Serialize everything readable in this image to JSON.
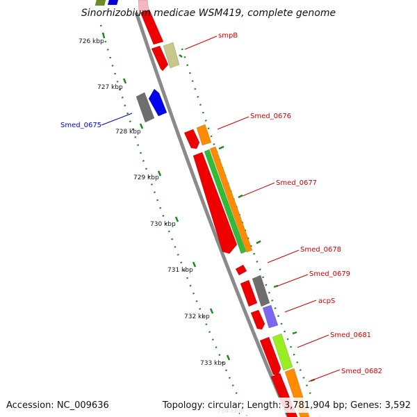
{
  "title": "Sinorhizobium medicae WSM419, complete genome",
  "footer": {
    "accession": "Accession: NC_009636",
    "summary": "Topology: circular; Length: 3,781,904 bp; Genes: 3,592"
  },
  "colors": {
    "backbone": "#8a8a8a",
    "scale_dots": "#1a8a1a",
    "forward_label": "#cc0000",
    "reverse_label": "#0000cc"
  },
  "scale_ticks": [
    {
      "kbp": 726,
      "label": "726 kbp"
    },
    {
      "kbp": 727,
      "label": "727 kbp"
    },
    {
      "kbp": 728,
      "label": "728 kbp"
    },
    {
      "kbp": 729,
      "label": "729 kbp"
    },
    {
      "kbp": 730,
      "label": "730 kbp"
    },
    {
      "kbp": 731,
      "label": "731 kbp"
    },
    {
      "kbp": 732,
      "label": "732 kbp"
    },
    {
      "kbp": 733,
      "label": "733 kbp"
    },
    {
      "kbp": 734,
      "label": "734 kbp"
    }
  ],
  "gene_labels": [
    {
      "name": "smpB",
      "strand": "forward"
    },
    {
      "name": "Smed_0675",
      "strand": "reverse"
    },
    {
      "name": "Smed_0676",
      "strand": "forward"
    },
    {
      "name": "Smed_0677",
      "strand": "forward"
    },
    {
      "name": "Smed_0678",
      "strand": "forward"
    },
    {
      "name": "Smed_0679",
      "strand": "forward"
    },
    {
      "name": "acpS",
      "strand": "forward"
    },
    {
      "name": "Smed_0681",
      "strand": "forward"
    },
    {
      "name": "Smed_0682",
      "strand": "forward"
    }
  ],
  "features": [
    {
      "id": "f-top-green",
      "color": "#6b8e23",
      "lane": "rev-outer"
    },
    {
      "id": "f-top-blue",
      "color": "#0000dd",
      "lane": "rev-inner"
    },
    {
      "id": "f-top-pink",
      "color": "#f4b6c2",
      "lane": "fwd-inner"
    },
    {
      "id": "f-smpB-red",
      "color": "#ee0000",
      "lane": "fwd-inner",
      "gene": "smpB"
    },
    {
      "id": "f-smpB-olive",
      "color": "#c8c888",
      "lane": "fwd-outer",
      "gene": "smpB"
    },
    {
      "id": "f-0675-gray",
      "color": "#6e6e6e",
      "lane": "rev-outer",
      "gene": "Smed_0675"
    },
    {
      "id": "f-0675-blue",
      "color": "#0000ee",
      "lane": "rev-inner",
      "gene": "Smed_0675"
    },
    {
      "id": "f-0676-red",
      "color": "#ee0000",
      "lane": "fwd-inner",
      "gene": "Smed_0676"
    },
    {
      "id": "f-0676-orange",
      "color": "#ff8c00",
      "lane": "fwd-outer",
      "gene": "Smed_0676"
    },
    {
      "id": "f-0677-red",
      "color": "#ee0000",
      "lane": "fwd-inner",
      "gene": "Smed_0677"
    },
    {
      "id": "f-0677-green",
      "color": "#33bb33",
      "lane": "fwd-mid",
      "gene": "Smed_0677"
    },
    {
      "id": "f-0677-orange",
      "color": "#ff8c00",
      "lane": "fwd-outer",
      "gene": "Smed_0677"
    },
    {
      "id": "f-0678-red",
      "color": "#ee0000",
      "lane": "fwd-inner",
      "gene": "Smed_0678"
    },
    {
      "id": "f-0679-red",
      "color": "#ee0000",
      "lane": "fwd-inner",
      "gene": "Smed_0679"
    },
    {
      "id": "f-0679-gray",
      "color": "#6e6e6e",
      "lane": "fwd-outer",
      "gene": "Smed_0679"
    },
    {
      "id": "f-acpS-red",
      "color": "#ee0000",
      "lane": "fwd-inner",
      "gene": "acpS"
    },
    {
      "id": "f-acpS-purple",
      "color": "#7b68ee",
      "lane": "fwd-outer",
      "gene": "acpS"
    },
    {
      "id": "f-0681-red",
      "color": "#ee0000",
      "lane": "fwd-inner",
      "gene": "Smed_0681"
    },
    {
      "id": "f-0681-lime",
      "color": "#99ee22",
      "lane": "fwd-outer",
      "gene": "Smed_0681"
    },
    {
      "id": "f-0682-red",
      "color": "#ee0000",
      "lane": "fwd-inner",
      "gene": "Smed_0682"
    },
    {
      "id": "f-0682-orange",
      "color": "#ff8c00",
      "lane": "fwd-outer",
      "gene": "Smed_0682"
    }
  ]
}
